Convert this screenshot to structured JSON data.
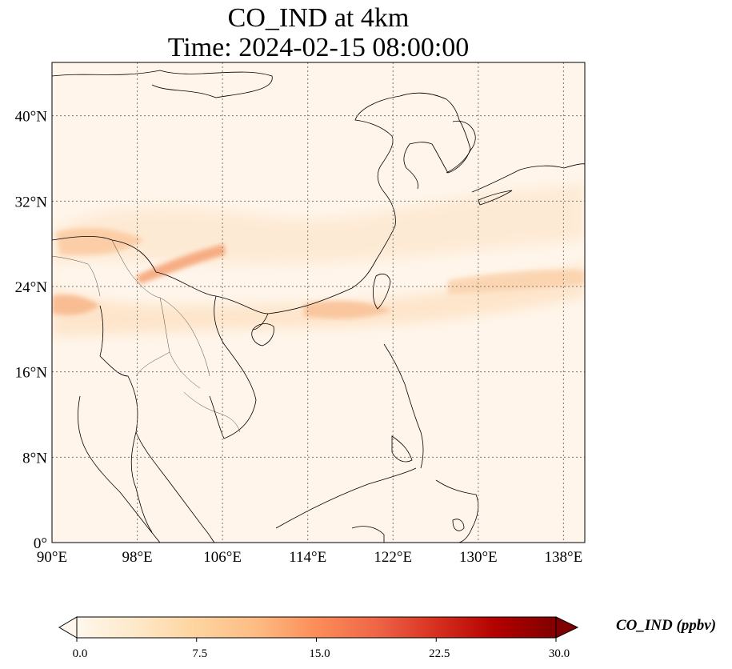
{
  "title": {
    "line1": "CO_IND at 4km",
    "line2": "Time: 2024-02-15 08:00:00"
  },
  "map": {
    "lon_range": [
      90,
      140
    ],
    "lat_range": [
      0,
      45
    ],
    "lat_ticks": [
      {
        "value": 0,
        "label": "0°"
      },
      {
        "value": 8,
        "label": "8°N"
      },
      {
        "value": 16,
        "label": "16°N"
      },
      {
        "value": 24,
        "label": "24°N"
      },
      {
        "value": 32,
        "label": "32°N"
      },
      {
        "value": 40,
        "label": "40°N"
      }
    ],
    "lon_ticks": [
      {
        "value": 90,
        "label": "90°E"
      },
      {
        "value": 98,
        "label": "98°E"
      },
      {
        "value": 106,
        "label": "106°E"
      },
      {
        "value": 114,
        "label": "114°E"
      },
      {
        "value": 122,
        "label": "122°E"
      },
      {
        "value": 130,
        "label": "130°E"
      },
      {
        "value": 138,
        "label": "138°E"
      }
    ],
    "gridlines": "dotted"
  },
  "colorbar": {
    "label": "CO_IND (ppbv)",
    "min": 0.0,
    "max": 30.0,
    "ticks": [
      "0.0",
      "7.5",
      "15.0",
      "22.5",
      "30.0"
    ],
    "colormap": "OrRd",
    "colors": [
      "#fff7ec",
      "#fee8c8",
      "#fdd49e",
      "#fdbb84",
      "#fc8d59",
      "#ef6548",
      "#d7301f",
      "#b30000",
      "#7f0000"
    ],
    "extend": "both"
  }
}
